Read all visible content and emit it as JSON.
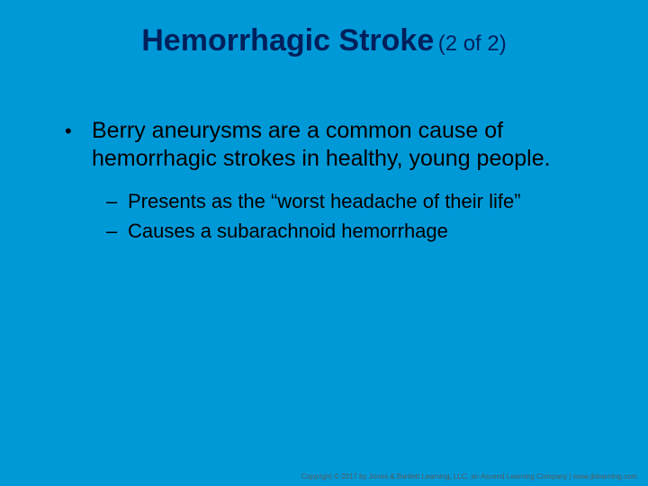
{
  "colors": {
    "background": "#0099d8",
    "title": "#00205b",
    "body_text": "#000000",
    "footer_text": "#5a5a5a"
  },
  "title": {
    "main": "Hemorrhagic Stroke",
    "sub": "(2 of 2)",
    "main_fontsize": 34,
    "sub_fontsize": 24
  },
  "bullets": {
    "level1_char": "•",
    "level2_char": "–",
    "level1": [
      {
        "text": "Berry aneurysms are a common cause of hemorrhagic strokes in healthy, young people.",
        "children": [
          "Presents as the “worst headache of their life”",
          "Causes a subarachnoid hemorrhage"
        ]
      }
    ],
    "level1_fontsize": 25,
    "level2_fontsize": 22
  },
  "footer": {
    "text": "Copyright © 2017 by Jones & Bartlett Learning, LLC, an Ascend Learning Company | www.jblearning.com"
  }
}
